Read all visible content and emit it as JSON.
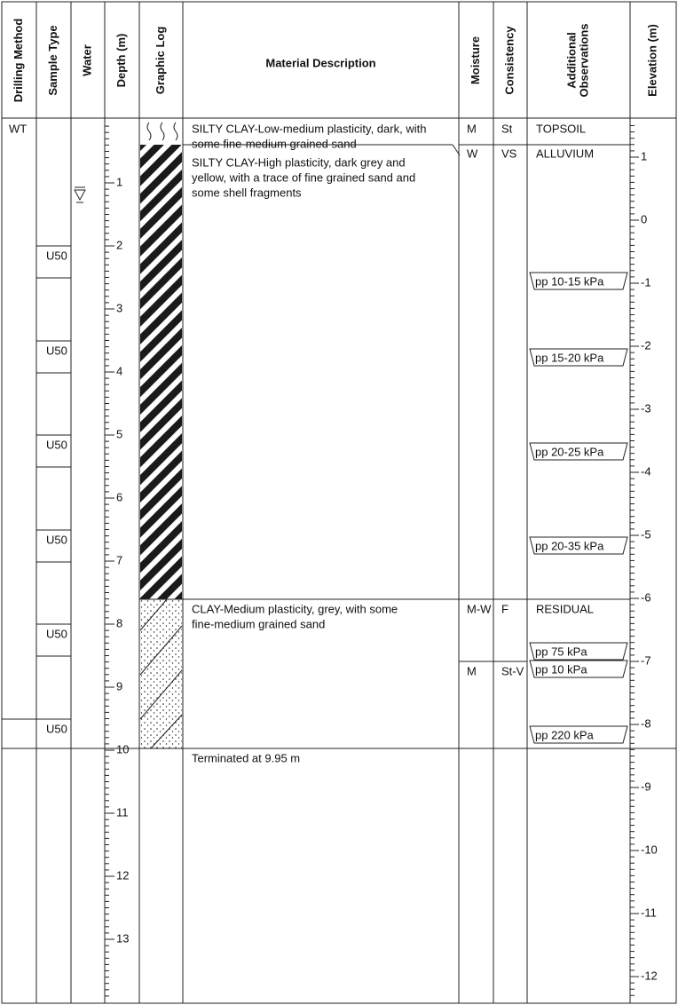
{
  "header": {
    "columns": [
      [
        "Drilling Method"
      ],
      [
        "Sample Type"
      ],
      [
        "Water"
      ],
      [
        "Depth (m)"
      ],
      [
        "Graphic Log"
      ],
      [
        "Material Description"
      ],
      [
        "Moisture"
      ],
      [
        "Consistency"
      ],
      [
        "Additional",
        "Observations"
      ],
      [
        "Elevation (m)"
      ]
    ]
  },
  "drilling_method": "WT",
  "samples": [
    "U50",
    "U50",
    "U50",
    "U50",
    "U50",
    "U50"
  ],
  "layers": [
    {
      "description": [
        "SILTY CLAY-Low-medium plasticity, dark, with",
        "some fine-medium grained sand"
      ],
      "moisture": "M",
      "consistency": "St",
      "observation": "TOPSOIL"
    },
    {
      "description": [
        "SILTY CLAY-High plasticity, dark grey and",
        "yellow, with a trace of fine grained sand and",
        "some shell fragments"
      ],
      "moisture": "W",
      "consistency": "VS",
      "observation": "ALLUVIUM"
    },
    {
      "description": [
        "CLAY-Medium plasticity, grey, with some",
        "fine-medium grained sand"
      ],
      "moisture": "M-W",
      "consistency": "F",
      "observation": "RESIDUAL"
    }
  ],
  "additional_rows": [
    {
      "moisture": "M",
      "consistency": "St-V"
    }
  ],
  "pocket_penetrometer": [
    "pp 10-15 kPa",
    "pp 15-20 kPa",
    "pp 20-25 kPa",
    "pp 20-35 kPa",
    "pp 75 kPa",
    "pp 10 kPa",
    "pp 220 kPa"
  ],
  "termination": "Terminated at 9.95 m",
  "depth_scale": [
    1,
    2,
    3,
    4,
    5,
    6,
    7,
    8,
    9,
    10,
    11,
    12,
    13
  ],
  "elevation_scale": [
    1,
    0,
    -1,
    -2,
    -3,
    -4,
    -5,
    -6,
    -7,
    -8,
    -9,
    -10,
    -11,
    -12
  ]
}
